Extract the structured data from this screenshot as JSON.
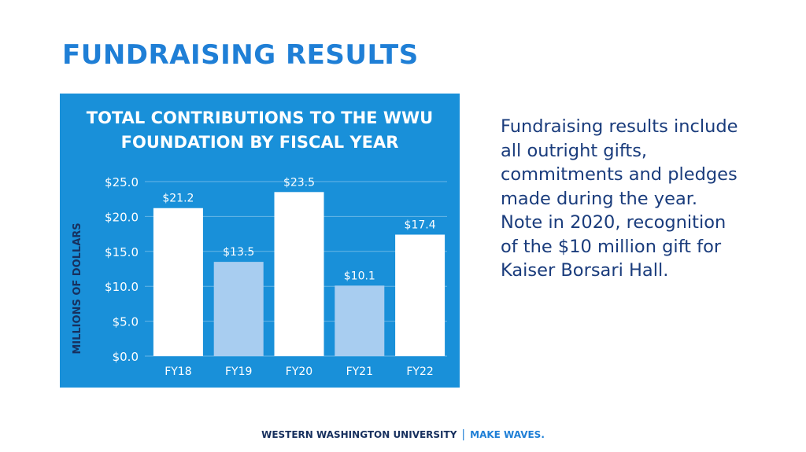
{
  "slide": {
    "title": "FUNDRAISING RESULTS",
    "description": "Fundraising results include all outright gifts, commitments and pledges made during the year. Note in 2020, recognition of the $10 million gift for Kaiser Borsari Hall."
  },
  "footer": {
    "university": "WESTERN WASHINGTON UNIVERSITY",
    "separator": "|",
    "tagline": "MAKE WAVES."
  },
  "chart_data": {
    "type": "bar",
    "title_lines": [
      "TOTAL CONTRIBUTIONS TO THE WWU",
      "FOUNDATION BY FISCAL YEAR"
    ],
    "ylabel": "MILLIONS OF DOLLARS",
    "xlabel": "",
    "categories": [
      "FY18",
      "FY19",
      "FY20",
      "FY21",
      "FY22"
    ],
    "values": [
      21.2,
      13.5,
      23.5,
      10.1,
      17.4
    ],
    "value_labels": [
      "$21.2",
      "$13.5",
      "$23.5",
      "$10.1",
      "$17.4"
    ],
    "y_ticks": [
      0,
      5,
      10,
      15,
      20,
      25
    ],
    "y_tick_labels": [
      "$0.0",
      "$5.0",
      "$10.0",
      "$15.0",
      "$20.0",
      "$25.0"
    ],
    "ylim": [
      0,
      25
    ],
    "grid": true,
    "colors": {
      "background": "#1990d9",
      "bar_primary": "#ffffff",
      "bar_secondary": "#a8cdf0",
      "axis_label": "#17305e",
      "text": "#ffffff"
    },
    "bar_color_keys": [
      "bar_primary",
      "bar_secondary",
      "bar_primary",
      "bar_secondary",
      "bar_primary"
    ]
  }
}
